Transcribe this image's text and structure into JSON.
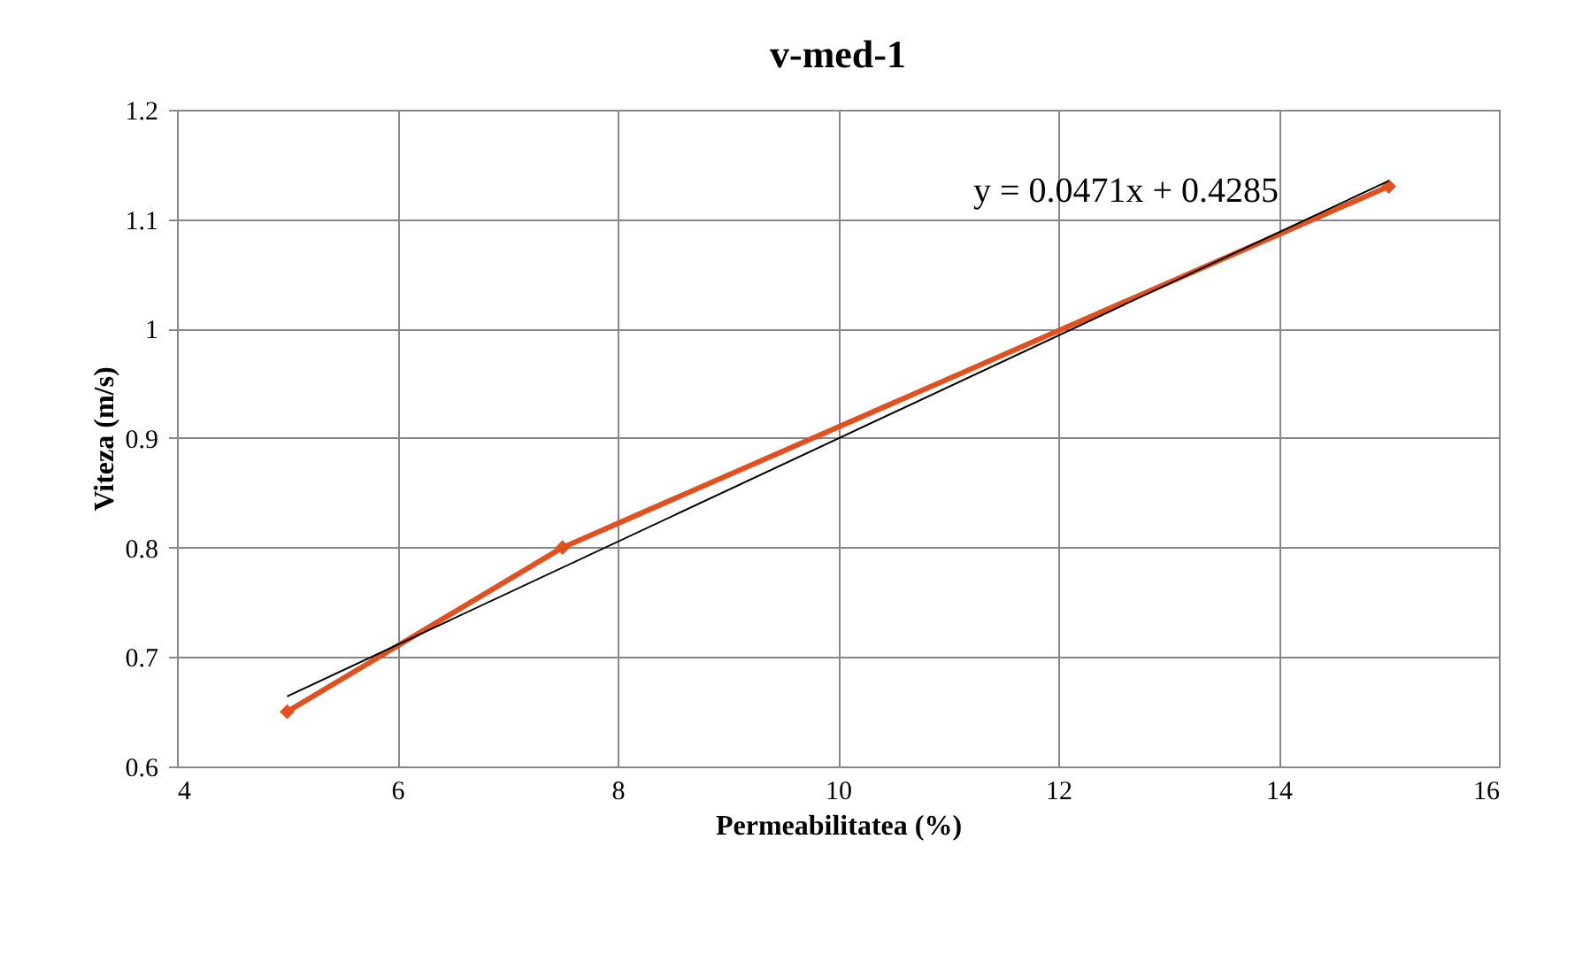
{
  "chart_data": {
    "type": "line",
    "title": "v-med-1",
    "xlabel": "Permeabilitatea (%)",
    "ylabel": "Viteza (m/s)",
    "xlim": [
      4,
      16
    ],
    "xticks": [
      4,
      6,
      8,
      10,
      12,
      14,
      16
    ],
    "ylim": [
      0.6,
      1.2
    ],
    "yticks": [
      0.6,
      0.7,
      0.8,
      0.9,
      1,
      1.1,
      1.2
    ],
    "grid": true,
    "series": [
      {
        "x": [
          5,
          7.5,
          15
        ],
        "values": [
          0.65,
          0.8,
          1.13
        ],
        "color": "#e2501f",
        "marker": "diamond",
        "line_style": "solid"
      },
      {
        "type": "line",
        "x": [
          5,
          15
        ],
        "values": [
          0.664,
          1.135
        ],
        "color": "#000000",
        "marker": "none",
        "line_style": "solid"
      }
    ],
    "annotations": [
      "y = 0.0471x + 0.4285"
    ]
  }
}
